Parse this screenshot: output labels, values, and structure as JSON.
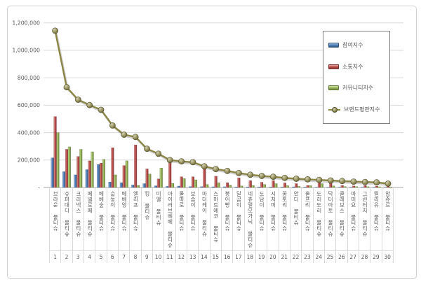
{
  "window": {
    "background": "#ffffff",
    "frame_border": "#d2ced4"
  },
  "chart_data": {
    "type": "bar",
    "subtype": "clustered-bars-with-line-overlay",
    "grid": true,
    "legend_position": "top-right",
    "ylim": [
      0,
      1200000
    ],
    "y_ticks": [
      {
        "label": "1,200,000",
        "value": 1200000
      },
      {
        "label": "1,000,000",
        "value": 1000000
      },
      {
        "label": "800,000",
        "value": 800000
      },
      {
        "label": "600,000",
        "value": 600000
      },
      {
        "label": "400,000",
        "value": 400000
      },
      {
        "label": "200,000",
        "value": 200000
      },
      {
        "label": "-",
        "value": 0
      }
    ],
    "categories": [
      "브라운 물티슈",
      "슈퍼대디 물티슈",
      "크리넥스 물티슈",
      "페넬로페 물티슈",
      "베베숲 물티슈",
      "순둥이 물티슈",
      "베베앙 물티슈",
      "엘리프 물티슈",
      "킹 물티슈",
      "미엘 물티슈",
      "아이러브베베 물티슈",
      "물따로 물티슈",
      "보솜이 물티슈",
      "마더케이 물티슈",
      "스마트에코 물티슈",
      "붕어빵 물티슈",
      "달곰이 물티슈",
      "네츄럴오가닉 물티슈",
      "도담이 물티슈",
      "시치미 물티슈",
      "꿈토리 물티슈",
      "안디 물티슈",
      "올프리 물티슈",
      "도리도리 물티슈",
      "닥터아토 물티슈",
      "클레보스 물티슈",
      "마미요 물티슈",
      "그린터치 물티슈",
      "릴리유 물티슈",
      "앙쥬르 물티슈"
    ],
    "ranks": [
      1,
      2,
      3,
      4,
      5,
      6,
      7,
      8,
      9,
      10,
      11,
      12,
      13,
      14,
      15,
      16,
      17,
      18,
      19,
      20,
      21,
      22,
      23,
      24,
      25,
      26,
      27,
      28,
      29,
      30
    ],
    "series": [
      {
        "name": "참여지수",
        "type": "bar",
        "color": "#4f81bd",
        "semantic": "participation",
        "values": [
          216000,
          115000,
          92000,
          130000,
          168000,
          40000,
          35000,
          18000,
          28000,
          12000,
          8000,
          10000,
          6000,
          6000,
          5000,
          5000,
          4000,
          4000,
          4000,
          3000,
          3000,
          5000,
          3000,
          2000,
          2000,
          2000,
          2000,
          2000,
          1000,
          1000
        ]
      },
      {
        "name": "소통지수",
        "type": "bar",
        "color": "#c0504d",
        "semantic": "communication",
        "values": [
          517000,
          278000,
          226000,
          194000,
          178000,
          290000,
          160000,
          310000,
          135000,
          62000,
          205000,
          78000,
          78000,
          140000,
          82000,
          35000,
          70000,
          50000,
          38000,
          50000,
          33000,
          28000,
          14000,
          48000,
          30000,
          14000,
          11000,
          14000,
          10000,
          8000
        ]
      },
      {
        "name": "커뮤니티지수",
        "type": "bar",
        "color": "#9bbb59",
        "semantic": "community",
        "values": [
          400000,
          296000,
          278000,
          260000,
          205000,
          92000,
          194000,
          15000,
          98000,
          142000,
          30000,
          65000,
          56000,
          22000,
          35000,
          17000,
          11000,
          15000,
          22000,
          28000,
          13000,
          8000,
          13000,
          28000,
          11000,
          7000,
          6000,
          6000,
          5000,
          4000
        ]
      },
      {
        "name": "브랜드평판지수",
        "type": "line",
        "color": "#8c8646",
        "semantic": "brand-reputation",
        "values": [
          1143000,
          731000,
          640000,
          601000,
          566000,
          452000,
          385000,
          368000,
          282000,
          246000,
          200000,
          190000,
          184000,
          154000,
          134000,
          121000,
          105000,
          93000,
          84000,
          78000,
          70000,
          64000,
          59000,
          55000,
          51000,
          47000,
          43000,
          40000,
          37000,
          28000
        ]
      }
    ],
    "colors": {
      "gridline": "#d9d9d9",
      "axis_line": "#a6a6a6",
      "tick_text": "#595959",
      "legend_border": "#7f7f7f"
    }
  }
}
